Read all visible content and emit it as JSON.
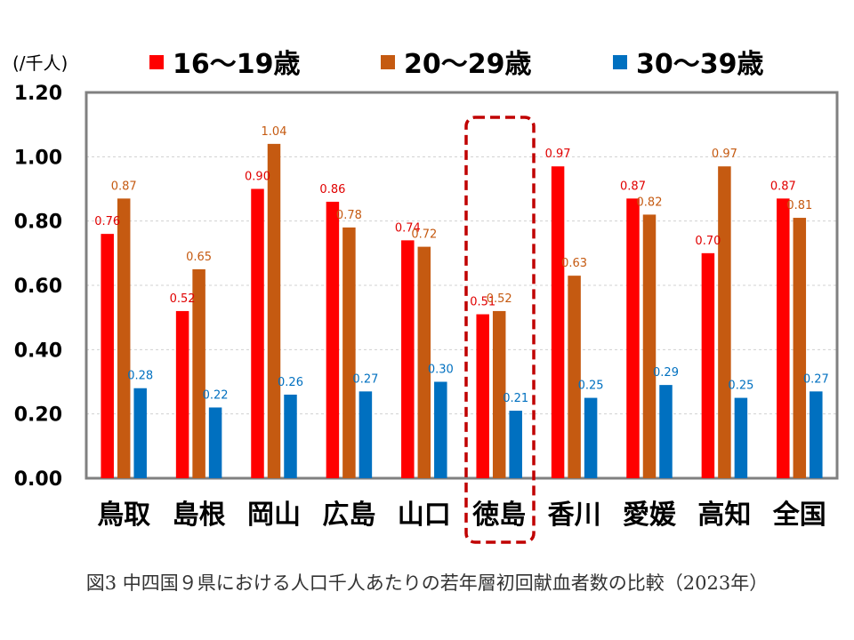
{
  "chart_data": {
    "type": "bar",
    "unit_label": "(/千人)",
    "categories": [
      "鳥取",
      "島根",
      "岡山",
      "広島",
      "山口",
      "徳島",
      "香川",
      "愛媛",
      "高知",
      "全国"
    ],
    "series": [
      {
        "name": "16～19歳",
        "color": "#ff0000",
        "values": [
          0.76,
          0.52,
          0.9,
          0.86,
          0.74,
          0.51,
          0.97,
          0.87,
          0.7,
          0.87
        ],
        "labels": [
          "0.76",
          "0.52",
          "0.90",
          "0.86",
          "0.74",
          "0.51",
          "0.97",
          "0.87",
          "0.70",
          "0.87"
        ]
      },
      {
        "name": "20～29歳",
        "color": "#c55a11",
        "values": [
          0.87,
          0.65,
          1.04,
          0.78,
          0.72,
          0.52,
          0.63,
          0.82,
          0.97,
          0.81
        ],
        "labels": [
          "0.87",
          "0.65",
          "1.04",
          "0.78",
          "0.72",
          "0.52",
          "0.63",
          "0.82",
          "0.97",
          "0.81"
        ]
      },
      {
        "name": "30～39歳",
        "color": "#0070c0",
        "values": [
          0.28,
          0.22,
          0.26,
          0.27,
          0.3,
          0.21,
          0.25,
          0.29,
          0.25,
          0.27
        ],
        "labels": [
          "0.28",
          "0.22",
          "0.26",
          "0.27",
          "0.30",
          "0.21",
          "0.25",
          "0.29",
          "0.25",
          "0.27"
        ]
      }
    ],
    "ylim": [
      0,
      1.2
    ],
    "yticks": [
      "0.00",
      "0.20",
      "0.40",
      "0.60",
      "0.80",
      "1.00",
      "1.20"
    ],
    "grid": true,
    "legend_position": "top",
    "highlight_category": "徳島",
    "highlight_color": "#c00000",
    "title": "図3 中四国９県における人口千人あたりの若年層初回献血者数の比較（2023年）"
  }
}
